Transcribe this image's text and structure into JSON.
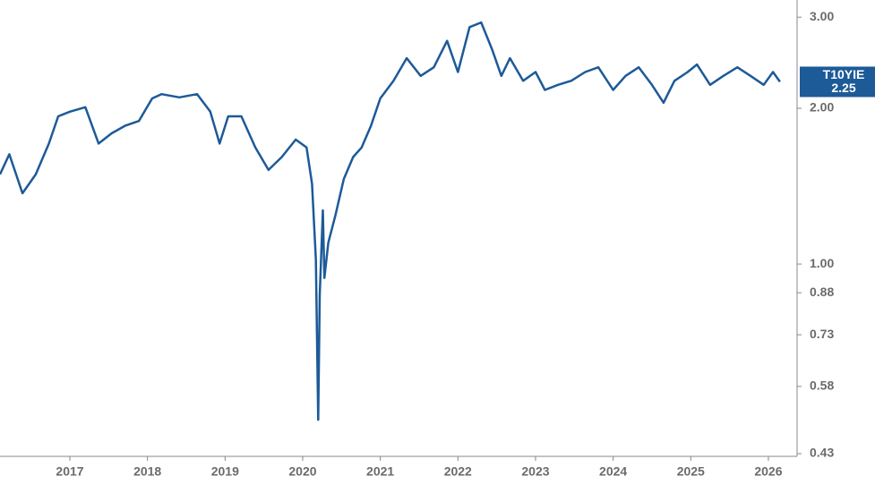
{
  "chart_data": {
    "type": "line",
    "series": [
      {
        "name": "T10YIE",
        "color": "#1d5a98",
        "x": [
          2016.1,
          2016.22,
          2016.39,
          2016.56,
          2016.73,
          2016.85,
          2017.0,
          2017.2,
          2017.37,
          2017.54,
          2017.71,
          2017.89,
          2018.06,
          2018.18,
          2018.41,
          2018.64,
          2018.81,
          2018.93,
          2019.04,
          2019.21,
          2019.39,
          2019.56,
          2019.73,
          2019.91,
          2020.05,
          2020.12,
          2020.17,
          2020.2,
          2020.22,
          2020.26,
          2020.28,
          2020.33,
          2020.42,
          2020.53,
          2020.65,
          2020.76,
          2020.88,
          2021.0,
          2021.17,
          2021.34,
          2021.52,
          2021.69,
          2021.86,
          2022.0,
          2022.15,
          2022.3,
          2022.44,
          2022.56,
          2022.67,
          2022.84,
          2023.0,
          2023.12,
          2023.29,
          2023.46,
          2023.64,
          2023.81,
          2024.0,
          2024.16,
          2024.33,
          2024.5,
          2024.65,
          2024.79,
          2024.96,
          2025.08,
          2025.25,
          2025.42,
          2025.6,
          2025.77,
          2025.94,
          2026.06,
          2026.15
        ],
        "values": [
          1.49,
          1.63,
          1.37,
          1.49,
          1.71,
          1.93,
          1.97,
          2.01,
          1.71,
          1.79,
          1.85,
          1.89,
          2.09,
          2.13,
          2.1,
          2.13,
          1.97,
          1.71,
          1.93,
          1.93,
          1.68,
          1.52,
          1.61,
          1.74,
          1.68,
          1.43,
          1.02,
          0.5,
          0.87,
          1.27,
          0.94,
          1.1,
          1.24,
          1.46,
          1.61,
          1.68,
          1.85,
          2.09,
          2.26,
          2.5,
          2.31,
          2.4,
          2.7,
          2.35,
          2.87,
          2.93,
          2.6,
          2.31,
          2.5,
          2.26,
          2.35,
          2.17,
          2.22,
          2.26,
          2.35,
          2.4,
          2.17,
          2.31,
          2.4,
          2.22,
          2.05,
          2.26,
          2.35,
          2.43,
          2.22,
          2.31,
          2.4,
          2.31,
          2.22,
          2.35,
          2.25
        ]
      }
    ],
    "xlim": [
      2016.1,
      2026.37
    ],
    "xticks": [
      2017,
      2018,
      2019,
      2020,
      2021,
      2022,
      2023,
      2024,
      2025,
      2026
    ],
    "ylim": [
      0.43,
      3.2
    ],
    "yticks": [
      {
        "value": 3,
        "label": "3.00"
      },
      {
        "value": 2,
        "label": "2.00"
      },
      {
        "value": 1,
        "label": "1.00"
      },
      0.88,
      0.73,
      0.58,
      0.43
    ],
    "log_scale": true,
    "grid": false
  }
}
